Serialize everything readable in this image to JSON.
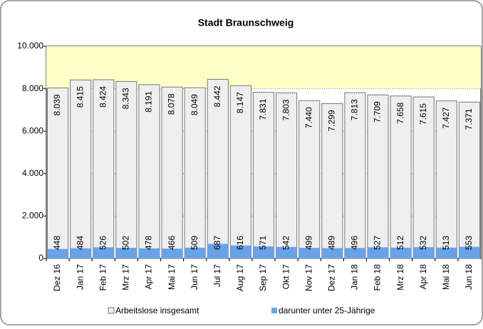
{
  "chart_data": {
    "type": "bar",
    "title": "Stadt Braunschweig",
    "categories": [
      "Dez 16",
      "Jan 17",
      "Feb 17",
      "Mrz 17",
      "Apr 17",
      "Mai 17",
      "Jun 17",
      "Jul 17",
      "Aug 17",
      "Sep 17",
      "Okt 17",
      "Nov 17",
      "Dez 17",
      "Jan 18",
      "Feb 18",
      "Mrz 18",
      "Apr 18",
      "Mai 18",
      "Jun 18"
    ],
    "series": [
      {
        "name": "Arbeitslose insgesamt",
        "color": "#efefef",
        "values": [
          8039,
          8415,
          8424,
          8343,
          8191,
          8078,
          8049,
          8442,
          8147,
          7831,
          7803,
          7440,
          7299,
          7813,
          7709,
          7658,
          7615,
          7427,
          7371
        ],
        "value_labels": [
          "8.039",
          "8.415",
          "8.424",
          "8.343",
          "8.191",
          "8.078",
          "8.049",
          "8.442",
          "8.147",
          "7.831",
          "7.803",
          "7.440",
          "7.299",
          "7.813",
          "7.709",
          "7.658",
          "7.615",
          "7.427",
          "7.371"
        ]
      },
      {
        "name": "darunter unter 25-Jährige",
        "color": "#6aa2ea",
        "values": [
          448,
          484,
          526,
          502,
          478,
          466,
          509,
          687,
          616,
          571,
          542,
          499,
          489,
          496,
          527,
          512,
          532,
          513,
          553
        ]
      }
    ],
    "ylim": [
      0,
      10000
    ],
    "yticks": [
      0,
      {
        "value": 2000,
        "label": "2.000"
      },
      {
        "value": 4000,
        "label": "4.000"
      },
      {
        "value": 6000,
        "label": "6.000"
      },
      {
        "value": 8000,
        "label": "8.000"
      },
      {
        "value": 10000,
        "label": "10.000"
      }
    ]
  }
}
